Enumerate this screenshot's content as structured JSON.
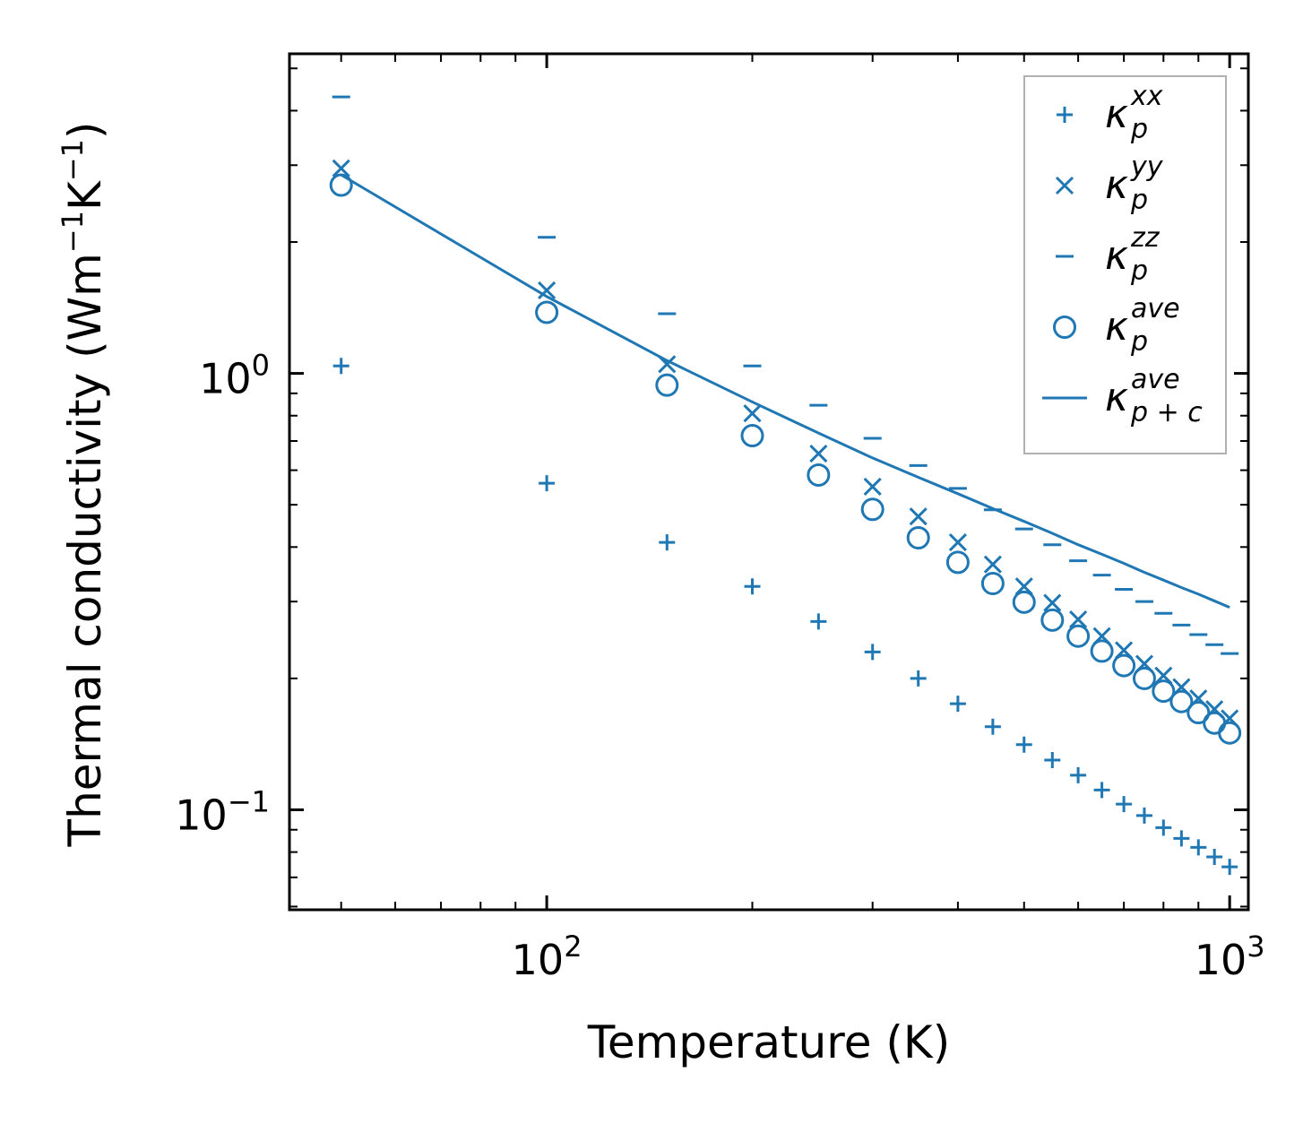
{
  "chart_data": {
    "type": "scatter",
    "title": "",
    "xlabel": "Temperature (K)",
    "ylabel": {
      "main": "Thermal conductivity (Wm",
      "sup1": "−1",
      "mid": "K",
      "sup2": "−1",
      "close": ")"
    },
    "xscale": "log",
    "yscale": "log",
    "xlim": [
      42,
      1065
    ],
    "ylim": [
      0.059,
      5.4
    ],
    "x_ticks": [
      {
        "value": 100,
        "base": "10",
        "exp": "2"
      },
      {
        "value": 1000,
        "base": "10",
        "exp": "3"
      }
    ],
    "y_ticks": [
      {
        "value": 0.1,
        "base": "10",
        "exp": "−1"
      },
      {
        "value": 1,
        "base": "10",
        "exp": "0"
      }
    ],
    "legend_position": "top-right",
    "color": "#1f77b4",
    "x": [
      50,
      100,
      150,
      200,
      250,
      300,
      350,
      400,
      450,
      500,
      550,
      600,
      650,
      700,
      750,
      800,
      850,
      900,
      950,
      1000
    ],
    "series": [
      {
        "name": "kxx",
        "label": {
          "base": "κ",
          "sub": "p",
          "sup": "xx"
        },
        "marker": "plus",
        "values": [
          1.04,
          0.56,
          0.41,
          0.325,
          0.27,
          0.23,
          0.2,
          0.175,
          0.155,
          0.141,
          0.13,
          0.12,
          0.111,
          0.103,
          0.097,
          0.091,
          0.086,
          0.082,
          0.078,
          0.074
        ]
      },
      {
        "name": "kyy",
        "label": {
          "base": "κ",
          "sub": "p",
          "sup": "yy"
        },
        "marker": "x",
        "values": [
          2.95,
          1.55,
          1.05,
          0.81,
          0.655,
          0.55,
          0.47,
          0.41,
          0.365,
          0.325,
          0.298,
          0.273,
          0.25,
          0.232,
          0.216,
          0.203,
          0.191,
          0.18,
          0.17,
          0.162
        ]
      },
      {
        "name": "kzz",
        "label": {
          "base": "κ",
          "sub": "p",
          "sup": "zz"
        },
        "marker": "hline",
        "values": [
          4.3,
          2.05,
          1.37,
          1.04,
          0.845,
          0.71,
          0.615,
          0.545,
          0.487,
          0.44,
          0.405,
          0.372,
          0.345,
          0.32,
          0.3,
          0.282,
          0.265,
          0.252,
          0.239,
          0.228
        ]
      },
      {
        "name": "kave",
        "label": {
          "base": "κ",
          "sub": "p",
          "sup": "ave"
        },
        "marker": "circle",
        "values": [
          2.7,
          1.38,
          0.94,
          0.72,
          0.585,
          0.488,
          0.42,
          0.369,
          0.33,
          0.299,
          0.272,
          0.25,
          0.231,
          0.214,
          0.2,
          0.187,
          0.177,
          0.167,
          0.158,
          0.15
        ]
      },
      {
        "name": "kave_pc",
        "label": {
          "base": "κ",
          "sub": "p + c",
          "sup": "ave"
        },
        "marker": "line",
        "values": [
          2.85,
          1.5,
          1.07,
          0.86,
          0.73,
          0.64,
          0.578,
          0.53,
          0.49,
          0.458,
          0.43,
          0.405,
          0.385,
          0.367,
          0.35,
          0.336,
          0.323,
          0.312,
          0.301,
          0.291
        ]
      }
    ]
  }
}
